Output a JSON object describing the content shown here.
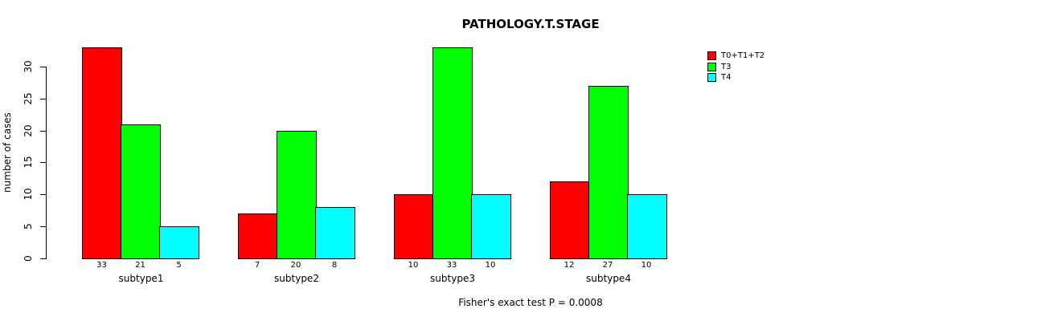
{
  "chart_data": {
    "type": "bar",
    "title": "PATHOLOGY.T.STAGE",
    "ylabel": "number of cases",
    "xlabel": "",
    "annotation": "Fisher's exact test P = 0.0008",
    "categories": [
      "subtype1",
      "subtype2",
      "subtype3",
      "subtype4"
    ],
    "series": [
      {
        "name": "T0+T1+T2",
        "color": "#ff0000",
        "values": [
          33,
          7,
          10,
          12
        ]
      },
      {
        "name": "T3",
        "color": "#00ff00",
        "values": [
          21,
          20,
          33,
          27
        ]
      },
      {
        "name": "T4",
        "color": "#00ffff",
        "values": [
          5,
          8,
          10,
          10
        ]
      }
    ],
    "bar_value_labels_shown": true,
    "yticks": [
      0,
      5,
      10,
      15,
      20,
      25,
      30
    ],
    "ylim": [
      0,
      33.5
    ],
    "grid": false,
    "legend_position": "top-right",
    "legend_entries": [
      "T0+T1+T2",
      "T3",
      "T4"
    ],
    "axis_color": "#000000",
    "bar_border_color": "#000000",
    "background_color": "#ffffff",
    "text_color": "#000000"
  }
}
